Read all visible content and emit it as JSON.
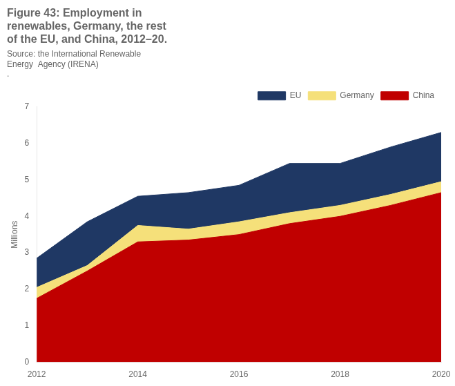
{
  "chart_data": {
    "type": "area",
    "title": [
      "Figure 43: Employment in",
      "renewables, Germany, the rest",
      "of the EU, and China, 2012–20."
    ],
    "subtitle": [
      "Source: the International Renewable",
      "Energy  Agency (IRENA)",
      "."
    ],
    "y_label": "Millions",
    "x": [
      2012,
      2013,
      2014,
      2015,
      2016,
      2017,
      2018,
      2019,
      2020
    ],
    "series": [
      {
        "name": "China",
        "color": "#c00000",
        "values": [
          1.75,
          2.5,
          3.3,
          3.35,
          3.5,
          3.8,
          4.0,
          4.3,
          4.65
        ]
      },
      {
        "name": "Germany",
        "color": "#f5e07a",
        "values": [
          0.3,
          0.15,
          0.45,
          0.3,
          0.35,
          0.3,
          0.3,
          0.3,
          0.3
        ]
      },
      {
        "name": "EU",
        "color": "#1f3864",
        "values": [
          0.8,
          1.2,
          0.8,
          1.0,
          1.0,
          1.35,
          1.15,
          1.3,
          1.35
        ]
      }
    ],
    "stacked": true,
    "xlim": [
      2012,
      2020
    ],
    "xticks": [
      2012,
      2014,
      2016,
      2018,
      2020
    ],
    "ylim": [
      0,
      7
    ],
    "yticks": [
      0,
      1,
      2,
      3,
      4,
      5,
      6,
      7
    ],
    "grid": false,
    "legend": "top"
  }
}
